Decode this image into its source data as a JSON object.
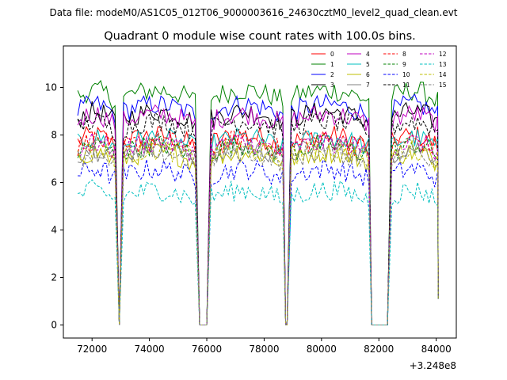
{
  "chart_data": {
    "type": "line",
    "suptitle": "Data file: modeM0/AS1C05_012T06_9000003616_24630cztM0_level2_quad_clean.evt",
    "title": "Quadrant 0 module wise count rates with 100.0s bins.",
    "xlabel": "",
    "ylabel": "",
    "x_offset_label": "+3.248e8",
    "xlim": [
      71000,
      84700
    ],
    "ylim": [
      -0.55,
      11.75
    ],
    "xticks": [
      72000,
      74000,
      76000,
      78000,
      80000,
      82000,
      84000
    ],
    "xtick_labels": [
      "72000",
      "74000",
      "76000",
      "78000",
      "80000",
      "82000",
      "84000"
    ],
    "yticks": [
      0,
      2,
      4,
      6,
      8,
      10
    ],
    "ytick_labels": [
      "0",
      "2",
      "4",
      "6",
      "8",
      "10"
    ],
    "legend_location": "top-right",
    "segments": [
      {
        "start": 71500,
        "end": 72800
      },
      {
        "start": 73100,
        "end": 75600
      },
      {
        "start": 76150,
        "end": 78600
      },
      {
        "start": 78950,
        "end": 81600
      },
      {
        "start": 82450,
        "end": 84050
      }
    ],
    "gap_floor_value": 0,
    "series": [
      {
        "name": "0",
        "color": "#ff0000",
        "dash": "solid",
        "level": 7.7
      },
      {
        "name": "1",
        "color": "#008000",
        "dash": "solid",
        "level": 9.6
      },
      {
        "name": "2",
        "color": "#0000ff",
        "dash": "solid",
        "level": 9.0
      },
      {
        "name": "3",
        "color": "#000000",
        "dash": "solid",
        "level": 8.7
      },
      {
        "name": "4",
        "color": "#bf00bf",
        "dash": "solid",
        "level": 8.6
      },
      {
        "name": "5",
        "color": "#00bfbf",
        "dash": "solid",
        "level": 7.6
      },
      {
        "name": "6",
        "color": "#bfbf00",
        "dash": "solid",
        "level": 7.0
      },
      {
        "name": "7",
        "color": "#808080",
        "dash": "solid",
        "level": 7.2
      },
      {
        "name": "8",
        "color": "#ff0000",
        "dash": "dashed",
        "level": 7.5
      },
      {
        "name": "9",
        "color": "#008000",
        "dash": "dashed",
        "level": 7.3
      },
      {
        "name": "10",
        "color": "#0000ff",
        "dash": "dashed",
        "level": 6.3
      },
      {
        "name": "11",
        "color": "#000000",
        "dash": "dashed",
        "level": 8.3
      },
      {
        "name": "12",
        "color": "#bf00bf",
        "dash": "dashed",
        "level": 7.4
      },
      {
        "name": "13",
        "color": "#00bfbf",
        "dash": "dashed",
        "level": 5.4
      },
      {
        "name": "14",
        "color": "#bfbf00",
        "dash": "dashed",
        "level": 7.1
      },
      {
        "name": "15",
        "color": "#808080",
        "dash": "dashed",
        "level": 7.0
      }
    ]
  }
}
